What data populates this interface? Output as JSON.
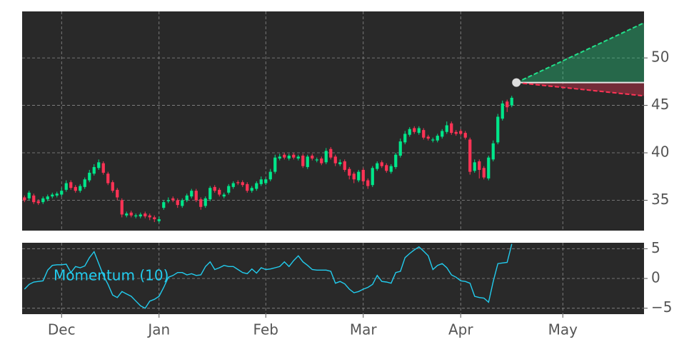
{
  "chart_data": [
    {
      "type": "candlestick",
      "categories": [
        null,
        null,
        null,
        null,
        null,
        null,
        null,
        null,
        "Dec",
        null,
        null,
        null,
        null,
        null,
        null,
        null,
        null,
        null,
        null,
        null,
        null,
        null,
        null,
        null,
        null,
        null,
        null,
        null,
        null,
        "Jan",
        null,
        null,
        null,
        null,
        null,
        null,
        null,
        null,
        null,
        null,
        null,
        null,
        null,
        null,
        null,
        null,
        null,
        null,
        null,
        null,
        null,
        null,
        "Feb",
        null,
        null,
        null,
        null,
        null,
        null,
        null,
        null,
        null,
        null,
        null,
        null,
        null,
        null,
        null,
        null,
        null,
        null,
        null,
        null,
        "Mar",
        null,
        null,
        null,
        null,
        null,
        null,
        null,
        null,
        null,
        null,
        null,
        null,
        null,
        null,
        null,
        null,
        null,
        null,
        null,
        null,
        "Apr",
        null,
        null,
        null,
        null,
        null,
        null,
        null,
        null,
        null,
        null,
        null,
        null,
        null,
        null,
        null,
        null,
        null,
        null,
        null,
        null,
        null,
        "May",
        null,
        null,
        null,
        null,
        null,
        null,
        null,
        null,
        null,
        null,
        null,
        null,
        null,
        null,
        null,
        null,
        null
      ],
      "open": [
        35.3,
        35.2,
        35.5,
        34.9,
        34.8,
        35.1,
        35.4,
        35.5,
        35.6,
        36.1,
        36.9,
        36.4,
        36.0,
        36.4,
        37.1,
        37.8,
        38.4,
        38.9,
        37.8,
        36.9,
        36.1,
        35.0,
        33.4,
        33.7,
        33.3,
        33.3,
        33.6,
        33.4,
        33.2,
        32.8,
        34.2,
        34.9,
        35.2,
        35.0,
        34.4,
        35.0,
        35.4,
        36.0,
        35.1,
        34.4,
        35.1,
        36.4,
        36.1,
        35.4,
        35.8,
        36.4,
        36.9,
        36.9,
        36.7,
        36.0,
        36.2,
        36.7,
        36.8,
        37.2,
        38.0,
        39.4,
        39.8,
        39.4,
        39.8,
        39.4,
        39.7,
        38.5,
        39.7,
        39.2,
        39.4,
        39.0,
        40.4,
        39.6,
        38.8,
        39.1,
        38.3,
        37.8,
        37.1,
        38.2,
        37.1,
        36.6,
        38.3,
        39.0,
        38.7,
        38.0,
        38.5,
        39.7,
        41.1,
        41.9,
        42.6,
        42.1,
        42.4,
        41.7,
        41.3,
        41.3,
        41.7,
        42.2,
        43.1,
        42.2,
        42.3,
        42.1,
        41.4,
        38.1,
        39.1,
        38.4,
        37.3,
        39.3,
        41.1,
        43.6,
        45.4,
        45.0,
        null,
        null,
        null,
        null,
        null,
        null,
        null,
        null,
        null,
        null,
        null,
        null,
        null,
        null,
        null,
        null,
        null,
        null,
        null,
        null,
        null,
        null,
        null,
        null,
        null,
        null,
        null,
        null
      ],
      "high": [
        35.5,
        36.0,
        35.7,
        35.1,
        35.4,
        35.6,
        35.8,
        35.9,
        36.3,
        37.1,
        37.1,
        36.6,
        36.7,
        37.4,
        38.2,
        38.8,
        39.3,
        39.1,
        38.0,
        37.1,
        36.3,
        35.2,
        33.8,
        33.9,
        33.6,
        33.7,
        33.8,
        33.6,
        33.4,
        33.3,
        35.0,
        35.3,
        35.4,
        35.2,
        35.2,
        35.7,
        36.2,
        36.2,
        35.3,
        35.4,
        36.5,
        36.6,
        36.3,
        35.8,
        36.7,
        37.0,
        37.1,
        37.1,
        36.9,
        36.5,
        37.0,
        37.5,
        37.4,
        38.3,
        39.8,
        39.9,
        40.0,
        39.9,
        40.0,
        39.8,
        39.9,
        39.8,
        39.9,
        39.5,
        39.6,
        40.5,
        40.6,
        39.8,
        39.3,
        39.3,
        38.5,
        38.0,
        38.2,
        38.4,
        37.3,
        38.6,
        39.1,
        39.2,
        38.9,
        38.8,
        40.0,
        41.5,
        42.3,
        42.7,
        42.8,
        42.8,
        42.6,
        41.9,
        41.6,
        42.0,
        42.5,
        43.3,
        43.3,
        42.4,
        42.5,
        42.3,
        41.6,
        39.3,
        39.3,
        38.6,
        39.7,
        41.3,
        44.1,
        45.5,
        45.6,
        46.0,
        null,
        null,
        null,
        null,
        null,
        null,
        null,
        null,
        null,
        null,
        null,
        null,
        null,
        null,
        null,
        null,
        null,
        null,
        null,
        null,
        null,
        null,
        null,
        null,
        null,
        null,
        null,
        null
      ],
      "low": [
        34.8,
        35.0,
        34.6,
        34.5,
        34.6,
        34.9,
        35.2,
        35.3,
        35.4,
        35.9,
        36.1,
        35.8,
        35.8,
        36.2,
        36.9,
        37.6,
        38.2,
        37.7,
        36.6,
        35.8,
        35.0,
        33.2,
        33.2,
        33.2,
        33.1,
        33.1,
        33.1,
        32.9,
        32.7,
        32.6,
        34.0,
        34.7,
        34.8,
        34.2,
        34.2,
        34.8,
        35.2,
        34.8,
        34.0,
        34.2,
        34.9,
        35.8,
        35.4,
        35.2,
        35.6,
        36.2,
        36.6,
        36.4,
        35.8,
        35.8,
        36.0,
        36.5,
        36.6,
        37.0,
        37.8,
        39.2,
        39.3,
        39.2,
        39.3,
        39.2,
        38.4,
        38.3,
        39.2,
        39.0,
        38.7,
        38.8,
        39.3,
        38.6,
        38.6,
        38.0,
        37.2,
        36.8,
        36.9,
        36.6,
        36.2,
        36.4,
        38.1,
        38.4,
        37.9,
        37.8,
        38.3,
        39.5,
        40.9,
        41.7,
        42.0,
        41.9,
        41.4,
        41.3,
        41.1,
        41.1,
        41.5,
        42.0,
        41.9,
        41.8,
        41.8,
        41.4,
        37.7,
        37.9,
        37.3,
        37.2,
        37.1,
        39.1,
        40.9,
        43.4,
        44.3,
        44.8,
        null,
        null,
        null,
        null,
        null,
        null,
        null,
        null,
        null,
        null,
        null,
        null,
        null,
        null,
        null,
        null,
        null,
        null,
        null,
        null,
        null,
        null,
        null,
        null,
        null,
        null,
        null,
        null
      ],
      "close": [
        35.0,
        35.8,
        34.8,
        34.7,
        35.2,
        35.4,
        35.6,
        35.7,
        36.0,
        36.8,
        36.3,
        36.0,
        36.5,
        37.2,
        37.9,
        38.5,
        39.0,
        37.9,
        36.8,
        36.0,
        35.3,
        33.5,
        33.6,
        33.4,
        33.4,
        33.5,
        33.3,
        33.2,
        33.0,
        33.0,
        34.8,
        35.0,
        35.0,
        34.5,
        35.0,
        35.5,
        36.0,
        35.0,
        34.3,
        35.2,
        36.3,
        36.0,
        35.6,
        35.6,
        36.5,
        36.8,
        36.8,
        36.6,
        36.0,
        36.3,
        36.8,
        37.2,
        37.2,
        38.0,
        39.5,
        39.6,
        39.5,
        39.7,
        39.5,
        39.6,
        38.6,
        39.6,
        39.4,
        39.3,
        38.9,
        40.2,
        39.5,
        38.9,
        39.0,
        38.2,
        37.6,
        37.2,
        38.0,
        37.0,
        36.5,
        38.4,
        38.9,
        38.6,
        38.1,
        38.6,
        39.8,
        41.2,
        42.0,
        42.5,
        42.2,
        42.6,
        41.6,
        41.5,
        41.4,
        41.8,
        42.3,
        42.9,
        42.1,
        42.0,
        42.0,
        41.6,
        38.0,
        39.0,
        38.2,
        37.4,
        39.5,
        41.0,
        43.8,
        45.2,
        44.8,
        45.8,
        null,
        null,
        null,
        null,
        null,
        null,
        null,
        null,
        null,
        null,
        null,
        null,
        null,
        null,
        null,
        null,
        null,
        null,
        null,
        null,
        null,
        null,
        null,
        null,
        null,
        null,
        null,
        null
      ],
      "up_color": "#00e68a",
      "down_color": "#ff3355",
      "ylim": [
        31.8,
        54.9
      ],
      "yticks": [
        35,
        40,
        45,
        50
      ],
      "grid": true,
      "forecast": {
        "start": 47.4,
        "upper": 53.7,
        "lower": 46.0,
        "upper_color": "#22e08a",
        "lower_color": "#ff3355"
      }
    },
    {
      "type": "line",
      "series": [
        {
          "name": "Momentum (10)",
          "color": "#22ccee",
          "values": [
            -1.8,
            -1.0,
            -0.6,
            -0.5,
            -0.4,
            1.4,
            2.2,
            2.3,
            2.3,
            2.4,
            1.0,
            2.0,
            1.8,
            2.1,
            3.5,
            4.5,
            2.5,
            0.5,
            -1.0,
            -2.8,
            -3.2,
            -2.2,
            -2.6,
            -3.0,
            -3.8,
            -4.6,
            -5.0,
            -3.8,
            -3.5,
            -3.0,
            -1.5,
            0.2,
            0.5,
            1.0,
            1.0,
            0.6,
            0.8,
            0.5,
            0.6,
            2.0,
            2.8,
            1.5,
            1.8,
            2.2,
            2.0,
            2.0,
            1.5,
            1.0,
            0.8,
            1.6,
            0.9,
            1.8,
            1.5,
            1.6,
            1.8,
            2.0,
            2.8,
            2.0,
            3.0,
            3.8,
            2.8,
            2.2,
            1.5,
            1.4,
            1.4,
            1.4,
            1.2,
            -0.8,
            -0.5,
            -0.9,
            -1.8,
            -2.4,
            -2.2,
            -1.8,
            -1.5,
            -1.0,
            0.5,
            -0.5,
            -0.6,
            -0.8,
            1.0,
            1.2,
            3.5,
            4.2,
            4.8,
            5.3,
            4.6,
            3.8,
            1.5,
            2.2,
            2.5,
            1.8,
            0.6,
            0.2,
            -0.4,
            -0.5,
            -0.8,
            -3.0,
            -3.2,
            -3.3,
            -4.0,
            -0.5,
            2.5,
            2.6,
            2.7,
            5.8,
            null,
            null,
            null,
            null,
            null,
            null,
            null,
            null,
            null,
            null,
            null,
            null,
            null,
            null,
            null,
            null,
            null,
            null,
            null,
            null,
            null,
            null,
            null,
            null,
            null,
            null,
            null,
            null
          ]
        }
      ],
      "ylim": [
        -6,
        6
      ],
      "yticks": [
        {
          "value": -5,
          "label": "−5"
        },
        0,
        5
      ],
      "grid": true
    }
  ]
}
